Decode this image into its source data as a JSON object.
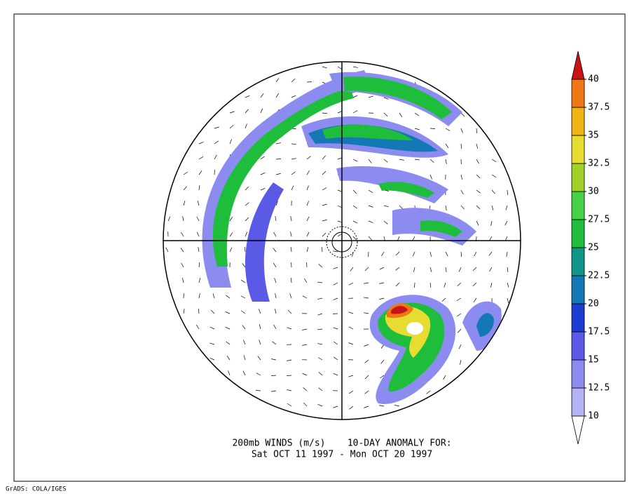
{
  "map": {
    "title_lines": [
      "200mb WINDS (m/s)    10-DAY ANOMALY FOR:",
      "Sat OCT 11 1997 - Mon OCT 20 1997"
    ],
    "footer": "GrADS: COLA/IGES",
    "colorbar": {
      "levels": [
        10,
        12.5,
        15,
        17.5,
        20,
        22.5,
        25,
        27.5,
        30,
        32.5,
        35,
        37.5,
        40
      ],
      "colors": [
        "#ffffff",
        "#b4b4f5",
        "#8c8cf0",
        "#5a5ae6",
        "#1e3cd2",
        "#1478b4",
        "#0f9688",
        "#1ebe3c",
        "#46d246",
        "#a0d228",
        "#e6dc32",
        "#f0b414",
        "#f07814",
        "#c81414"
      ]
    }
  }
}
